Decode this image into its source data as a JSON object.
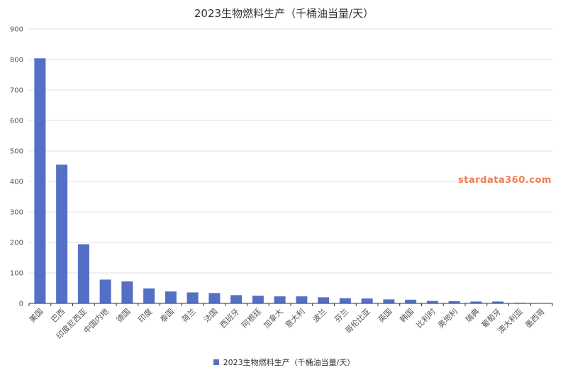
{
  "chart_data": {
    "type": "bar",
    "title": "2023生物燃料生产（千桶油当量/天）",
    "categories": [
      "美国",
      "巴西",
      "印度尼西亚",
      "中国内地",
      "德国",
      "印度",
      "泰国",
      "荷兰",
      "法国",
      "西班牙",
      "阿根廷",
      "加拿大",
      "意大利",
      "波兰",
      "芬兰",
      "哥伦比亚",
      "英国",
      "韩国",
      "比利时",
      "奥地利",
      "瑞典",
      "葡萄牙",
      "澳大利亚",
      "墨西哥"
    ],
    "series": [
      {
        "name": "2023生物燃料生产（千桶油当量/天）",
        "color": "#5470c6",
        "values": [
          804,
          455,
          194,
          78,
          72,
          49,
          39,
          36,
          34,
          27,
          25,
          23,
          23,
          20,
          17,
          16,
          13,
          12,
          8,
          7,
          6,
          6,
          2,
          1
        ]
      }
    ],
    "xlabel": "",
    "ylabel": "",
    "ylim": [
      0,
      900
    ],
    "yticks": [
      0,
      100,
      200,
      300,
      400,
      500,
      600,
      700,
      800,
      900
    ],
    "grid": true,
    "legend_position": "bottom-center"
  },
  "watermark": "stardata360.com"
}
